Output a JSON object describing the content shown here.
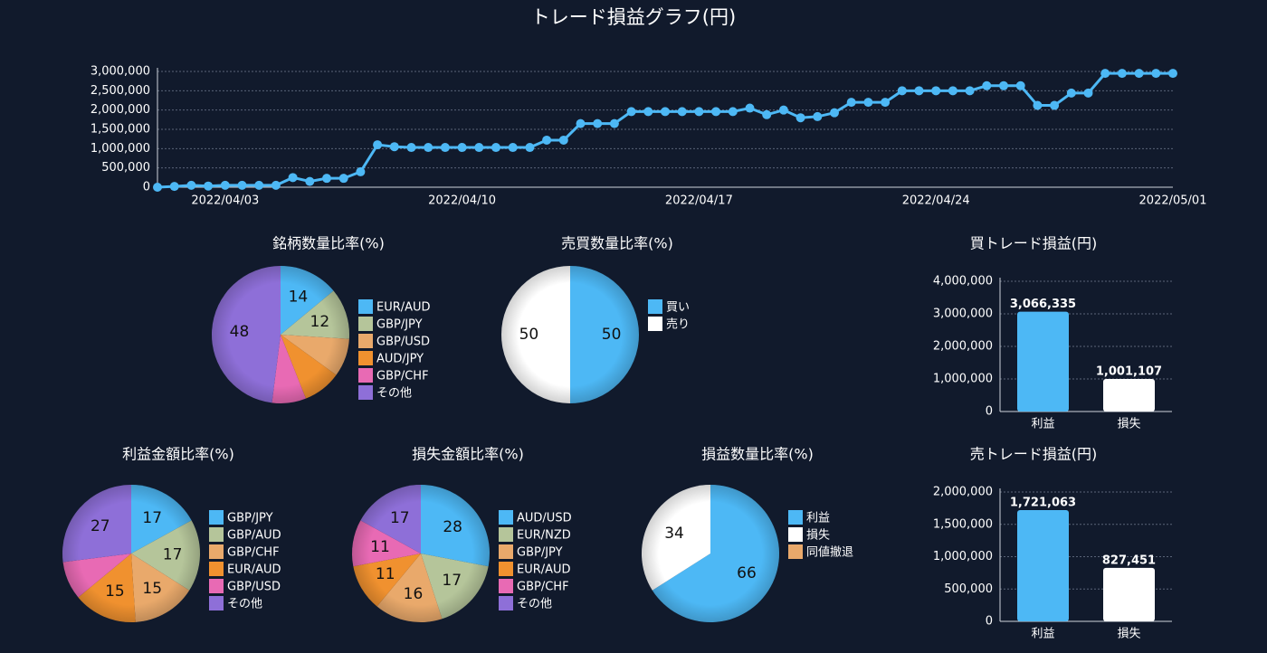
{
  "chart_data": [
    {
      "type": "line",
      "title": "トレード損益グラフ(円)",
      "categories": [
        null,
        null,
        null,
        null,
        "2022/04/03",
        null,
        null,
        null,
        null,
        null,
        null,
        null,
        null,
        null,
        null,
        null,
        null,
        null,
        "2022/04/10",
        null,
        null,
        null,
        null,
        null,
        null,
        null,
        null,
        null,
        null,
        null,
        null,
        null,
        "2022/04/17",
        null,
        null,
        null,
        null,
        null,
        null,
        null,
        null,
        null,
        null,
        null,
        null,
        null,
        "2022/04/24",
        null,
        null,
        null,
        null,
        null,
        null,
        null,
        null,
        null,
        null,
        null,
        null,
        null,
        "2022/05/01"
      ],
      "series": [
        {
          "name": "損益",
          "color": "#4db8f5",
          "values": [
            0,
            20000,
            50000,
            30000,
            50000,
            50000,
            50000,
            50000,
            250000,
            150000,
            230000,
            230000,
            400000,
            1100000,
            1050000,
            1030000,
            1030000,
            1030000,
            1030000,
            1030000,
            1030000,
            1030000,
            1030000,
            1220000,
            1220000,
            1650000,
            1650000,
            1650000,
            1960000,
            1960000,
            1960000,
            1960000,
            1960000,
            1960000,
            1960000,
            2050000,
            1880000,
            2000000,
            1800000,
            1830000,
            1930000,
            2200000,
            2200000,
            2200000,
            2500000,
            2500000,
            2500000,
            2500000,
            2500000,
            2630000,
            2630000,
            2630000,
            2120000,
            2120000,
            2440000,
            2440000,
            2950000,
            2950000,
            2950000,
            2950000,
            2950000
          ]
        }
      ],
      "ylim": [
        0,
        3000000
      ],
      "yticks": [
        0,
        {
          "value": 500000,
          "label": "500,000"
        },
        {
          "value": 1000000,
          "label": "1,000,000"
        },
        {
          "value": 1500000,
          "label": "1,500,000"
        },
        {
          "value": 2000000,
          "label": "2,000,000"
        },
        {
          "value": 2500000,
          "label": "2,500,000"
        },
        {
          "value": 3000000,
          "label": "3,000,000"
        }
      ],
      "grid": true
    },
    {
      "type": "pie",
      "title": "銘柄数量比率(%)",
      "categories": [
        "EUR/AUD",
        "GBP/JPY",
        "GBP/USD",
        "AUD/JPY",
        "GBP/CHF",
        "その他"
      ],
      "values": [
        14,
        12,
        9,
        9,
        8,
        48
      ],
      "colors": [
        "#4db8f5",
        "#b5c59a",
        "#e9a96b",
        "#f0912f",
        "#e86ab4",
        "#8e6fd8"
      ]
    },
    {
      "type": "pie",
      "title": "売買数量比率(%)",
      "categories": [
        "買い",
        "売り"
      ],
      "values": [
        50,
        50
      ],
      "colors": [
        "#4db8f5",
        "#ffffff"
      ]
    },
    {
      "type": "bar",
      "title": "買トレード損益(円)",
      "categories": [
        "利益",
        "損失"
      ],
      "values": [
        3066335,
        1001107
      ],
      "value_labels": [
        "3,066,335",
        "1,001,107"
      ],
      "colors": [
        "#4db8f5",
        "#ffffff"
      ],
      "ylim": [
        0,
        4000000
      ],
      "yticks": [
        0,
        {
          "value": 1000000,
          "label": "1,000,000"
        },
        {
          "value": 2000000,
          "label": "2,000,000"
        },
        {
          "value": 3000000,
          "label": "3,000,000"
        },
        {
          "value": 4000000,
          "label": "4,000,000"
        }
      ],
      "grid": true
    },
    {
      "type": "pie",
      "title": "利益金額比率(%)",
      "categories": [
        "GBP/JPY",
        "GBP/AUD",
        "GBP/CHF",
        "EUR/AUD",
        "GBP/USD",
        "その他"
      ],
      "values": [
        17,
        17,
        15,
        15,
        9,
        27
      ],
      "colors": [
        "#4db8f5",
        "#b5c59a",
        "#e9a96b",
        "#f0912f",
        "#e86ab4",
        "#8e6fd8"
      ]
    },
    {
      "type": "pie",
      "title": "損失金額比率(%)",
      "categories": [
        "AUD/USD",
        "EUR/NZD",
        "GBP/JPY",
        "EUR/AUD",
        "GBP/CHF",
        "その他"
      ],
      "values": [
        28,
        17,
        16,
        11,
        11,
        17
      ],
      "colors": [
        "#4db8f5",
        "#b5c59a",
        "#e9a96b",
        "#f0912f",
        "#e86ab4",
        "#8e6fd8"
      ]
    },
    {
      "type": "pie",
      "title": "損益数量比率(%)",
      "categories": [
        "利益",
        "損失",
        "同値撤退"
      ],
      "values": [
        66,
        34,
        0
      ],
      "colors": [
        "#4db8f5",
        "#ffffff",
        "#e9a96b"
      ]
    },
    {
      "type": "bar",
      "title": "売トレード損益(円)",
      "categories": [
        "利益",
        "損失"
      ],
      "values": [
        1721063,
        827451
      ],
      "value_labels": [
        "1,721,063",
        "827,451"
      ],
      "colors": [
        "#4db8f5",
        "#ffffff"
      ],
      "ylim": [
        0,
        2000000
      ],
      "yticks": [
        0,
        {
          "value": 500000,
          "label": "500,000"
        },
        {
          "value": 1000000,
          "label": "1,000,000"
        },
        {
          "value": 1500000,
          "label": "1,500,000"
        },
        {
          "value": 2000000,
          "label": "2,000,000"
        }
      ],
      "grid": true
    }
  ]
}
